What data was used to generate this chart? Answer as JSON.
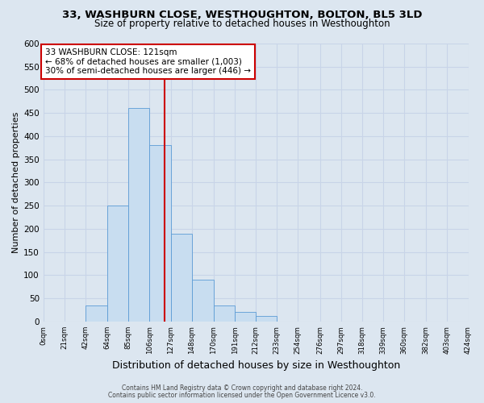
{
  "title": "33, WASHBURN CLOSE, WESTHOUGHTON, BOLTON, BL5 3LD",
  "subtitle": "Size of property relative to detached houses in Westhoughton",
  "xlabel": "Distribution of detached houses by size in Westhoughton",
  "ylabel": "Number of detached properties",
  "bar_edges": [
    0,
    21,
    42,
    64,
    85,
    106,
    127,
    148,
    170,
    191,
    212,
    233,
    254,
    276,
    297,
    318,
    339,
    360,
    382,
    403,
    424
  ],
  "bar_heights": [
    0,
    0,
    35,
    250,
    460,
    380,
    190,
    90,
    35,
    20,
    12,
    0,
    0,
    0,
    0,
    0,
    0,
    0,
    0,
    0
  ],
  "bar_color": "#c8ddf0",
  "bar_edgecolor": "#5b9bd5",
  "vline_x": 121,
  "vline_color": "#cc0000",
  "annotation_line1": "33 WASHBURN CLOSE: 121sqm",
  "annotation_line2": "← 68% of detached houses are smaller (1,003)",
  "annotation_line3": "30% of semi-detached houses are larger (446) →",
  "annotation_box_color": "#cc0000",
  "annotation_bg": "white",
  "ylim": [
    0,
    600
  ],
  "yticks": [
    0,
    50,
    100,
    150,
    200,
    250,
    300,
    350,
    400,
    450,
    500,
    550,
    600
  ],
  "tick_labels": [
    "0sqm",
    "21sqm",
    "42sqm",
    "64sqm",
    "85sqm",
    "106sqm",
    "127sqm",
    "148sqm",
    "170sqm",
    "191sqm",
    "212sqm",
    "233sqm",
    "254sqm",
    "276sqm",
    "297sqm",
    "318sqm",
    "339sqm",
    "360sqm",
    "382sqm",
    "403sqm",
    "424sqm"
  ],
  "footnote1": "Contains HM Land Registry data © Crown copyright and database right 2024.",
  "footnote2": "Contains public sector information licensed under the Open Government Licence v3.0.",
  "grid_color": "#c8d4e8",
  "bg_color": "#dce6f0",
  "title_fontsize": 9.5,
  "subtitle_fontsize": 8.5,
  "xlabel_fontsize": 9,
  "ylabel_fontsize": 8
}
